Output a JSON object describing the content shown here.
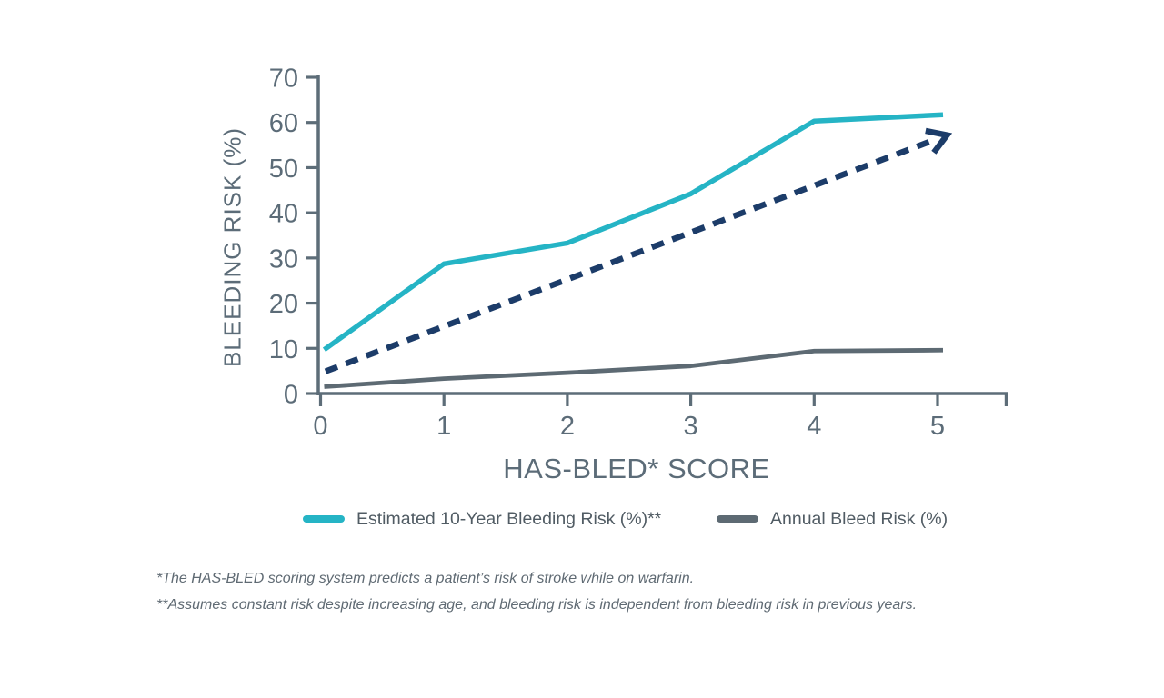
{
  "chart_data": {
    "type": "line",
    "title": "",
    "xlabel": "HAS-BLED* SCORE",
    "ylabel": "BLEEDING RISK (%)",
    "categories": [
      0,
      1,
      2,
      3,
      4,
      5
    ],
    "x_ticks": [
      "0",
      "1",
      "2",
      "3",
      "4",
      "5"
    ],
    "y_ticks": [
      "0",
      "10",
      "20",
      "30",
      "40",
      "50",
      "60",
      "70"
    ],
    "xlim": [
      0,
      5.6
    ],
    "ylim": [
      0,
      70
    ],
    "grid": false,
    "legend_position": "bottom",
    "series": [
      {
        "name": "Estimated 10-Year Bleeding Risk (%)**",
        "color": "#25b4c5",
        "line_style": "solid",
        "values": [
          9.7,
          28.7,
          33.3,
          44.2,
          60.3,
          61.7
        ]
      },
      {
        "name": "Annual Bleed Risk (%)",
        "color": "#5d6a73",
        "line_style": "solid",
        "values": [
          1.5,
          3.3,
          4.6,
          6.1,
          9.4,
          9.6
        ]
      }
    ],
    "trend_arrow": {
      "style": "dashed",
      "color": "#1c3c69",
      "from": {
        "x": 0.04,
        "y": 4.9
      },
      "to": {
        "x": 4.98,
        "y": 56.2
      }
    }
  },
  "axis": {
    "color": "#5d6d78",
    "label_color": "#5c6c78"
  },
  "footnotes": {
    "line1": "*The HAS-BLED scoring system predicts a patient’s risk of stroke while on warfarin.",
    "line2": "**Assumes constant risk despite increasing age, and bleeding risk is independent from bleeding risk in previous years."
  }
}
